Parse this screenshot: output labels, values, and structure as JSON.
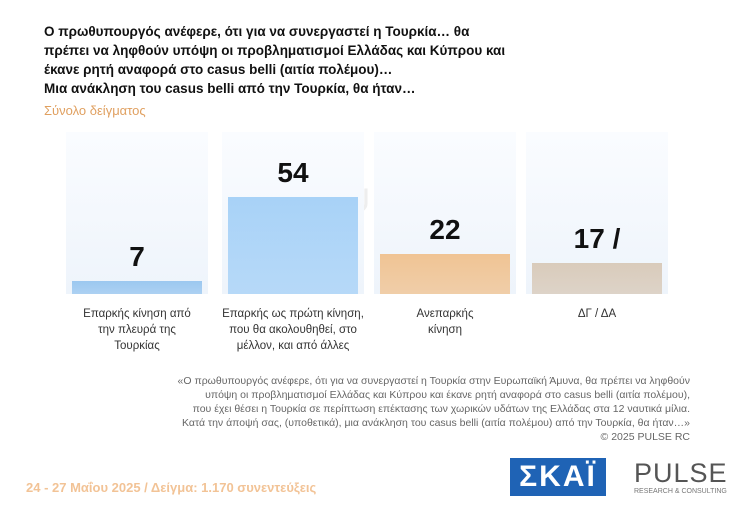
{
  "chart_data": {
    "type": "bar",
    "title_lines": [
      "Ο πρωθυπουργός ανέφερε, ότι για να συνεργαστεί η Τουρκία… θα πρέπει να ληφθούν υπόψη οι προβληματισμοί Ελλάδας και Κύπρου και έκανε ρητή αναφορά στο casus belli (αιτία πολέμου)…",
      "Μια ανάκληση του casus belli από την Τουρκία, θα ήταν…"
    ],
    "subtitle": "Σύνολο δείγματος",
    "categories": [
      "Επαρκής κίνηση από την πλευρά της Τουρκίας",
      "Επαρκής ως πρώτη κίνηση, που θα ακολουθηθεί, στο μέλλον, και από άλλες",
      "Ανεπαρκής κίνηση",
      "ΔΓ / ΔΑ"
    ],
    "values": [
      7,
      54,
      22,
      17
    ],
    "value_labels": [
      "7",
      "54",
      "22",
      "17 /"
    ],
    "colors": [
      "#9cc8f0",
      "#a8d2f7",
      "#f0c494",
      "#d9cbbb"
    ],
    "footnote_lines": [
      "«Ο πρωθυπουργός ανέφερε, ότι για να συνεργαστεί η Τουρκία στην Ευρωπαϊκή Άμυνα, θα πρέπει να ληφθούν",
      "υπόψη οι προβληματισμοί Ελλάδας και Κύπρου και έκανε ρητή αναφορά στο casus belli (αιτία πολέμου),",
      "που έχει θέσει η Τουρκία σε περίπτωση επέκτασης των χωρικών υδάτων της Ελλάδας στα 12 ναυτικά μίλια.",
      "Κατά την άποψή σας, (υποθετικά), μια ανάκληση του casus belli (αιτία πολέμου) από την Τουρκία, θα ήταν…»",
      "©  2025  PULSE RC"
    ],
    "footer": "24 - 27 Μαΐου 2025  /  Δείγμα:  1.170 συνεντεύξεις",
    "logo_skai": "ΣΚΑΪ",
    "logo_pulse": "PULSE",
    "logo_pulse_sub": "RESEARCH & CONSULTING"
  }
}
